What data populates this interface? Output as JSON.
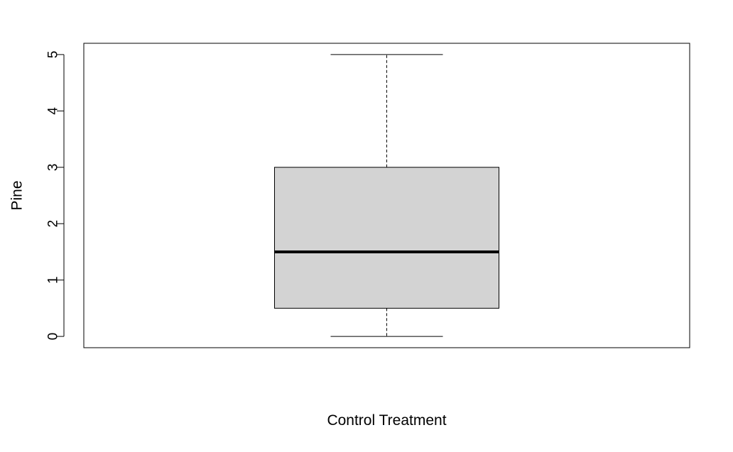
{
  "chart_data": {
    "type": "boxplot",
    "title": "",
    "xlabel": "Control Treatment",
    "ylabel": "Pine",
    "ylim": [
      -0.2,
      5.2
    ],
    "yticks": [
      0,
      1,
      2,
      3,
      4,
      5
    ],
    "grid": false,
    "box": {
      "min": 0,
      "q1": 0.5,
      "median": 1.5,
      "q3": 3,
      "max": 5
    },
    "colors": {
      "box_fill": "#d3d3d3",
      "stroke": "#000000"
    }
  }
}
